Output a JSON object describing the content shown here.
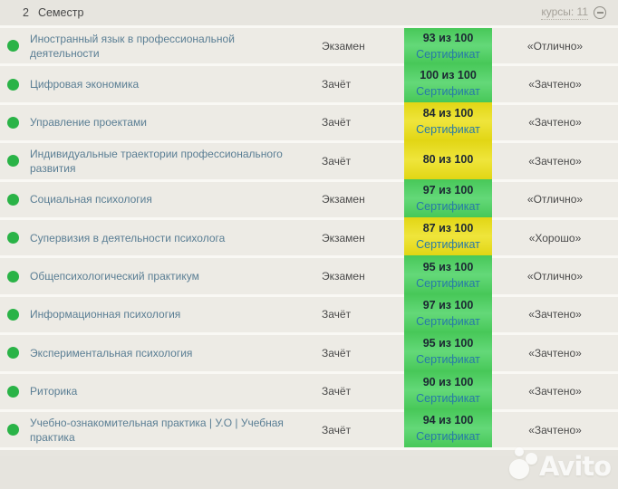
{
  "header": {
    "semester_number": "2",
    "semester_title": "Семестр",
    "courses_counter": "курсы: 11"
  },
  "table": {
    "rows": [
      {
        "course": "Иностранный язык в профессиональной деятельности",
        "assessment": "Экзамен",
        "score": "93 из 100",
        "certificate": "Сертификат",
        "badge_color": "green",
        "grade": "«Отлично»",
        "status_dot": "green"
      },
      {
        "course": "Цифровая экономика",
        "assessment": "Зачёт",
        "score": "100 из 100",
        "certificate": "Сертификат",
        "badge_color": "green",
        "grade": "«Зачтено»",
        "status_dot": "green"
      },
      {
        "course": "Управление проектами",
        "assessment": "Зачёт",
        "score": "84 из 100",
        "certificate": "Сертификат",
        "badge_color": "yellow",
        "grade": "«Зачтено»",
        "status_dot": "green"
      },
      {
        "course": "Индивидуальные траектории профессионального развития",
        "assessment": "Зачёт",
        "score": "80 из 100",
        "certificate": "",
        "badge_color": "yellow",
        "grade": "«Зачтено»",
        "status_dot": "green"
      },
      {
        "course": "Социальная психология",
        "assessment": "Экзамен",
        "score": "97 из 100",
        "certificate": "Сертификат",
        "badge_color": "green",
        "grade": "«Отлично»",
        "status_dot": "green"
      },
      {
        "course": "Супервизия в деятельности психолога",
        "assessment": "Экзамен",
        "score": "87 из 100",
        "certificate": "Сертификат",
        "badge_color": "yellow",
        "grade": "«Хорошо»",
        "status_dot": "green"
      },
      {
        "course": "Общепсихологический практикум",
        "assessment": "Экзамен",
        "score": "95 из 100",
        "certificate": "Сертификат",
        "badge_color": "green",
        "grade": "«Отлично»",
        "status_dot": "green"
      },
      {
        "course": "Информационная психология",
        "assessment": "Зачёт",
        "score": "97 из 100",
        "certificate": "Сертификат",
        "badge_color": "green",
        "grade": "«Зачтено»",
        "status_dot": "green"
      },
      {
        "course": "Экспериментальная психология",
        "assessment": "Зачёт",
        "score": "95 из 100",
        "certificate": "Сертификат",
        "badge_color": "green",
        "grade": "«Зачтено»",
        "status_dot": "green"
      },
      {
        "course": "Риторика",
        "assessment": "Зачёт",
        "score": "90 из 100",
        "certificate": "Сертификат",
        "badge_color": "green",
        "grade": "«Зачтено»",
        "status_dot": "green"
      },
      {
        "course": "Учебно-ознакомительная практика | У.О | Учебная практика",
        "assessment": "Зачёт",
        "score": "94 из 100",
        "certificate": "Сертификат",
        "badge_color": "green",
        "grade": "«Зачтено»",
        "status_dot": "green"
      }
    ]
  },
  "colors": {
    "badge_green": "#46d15f",
    "badge_yellow": "#ece016",
    "dot_green": "#2ab347",
    "link_blue": "#2779a8",
    "course_link": "#5a7e94"
  },
  "watermark": {
    "brand": "Avito"
  }
}
